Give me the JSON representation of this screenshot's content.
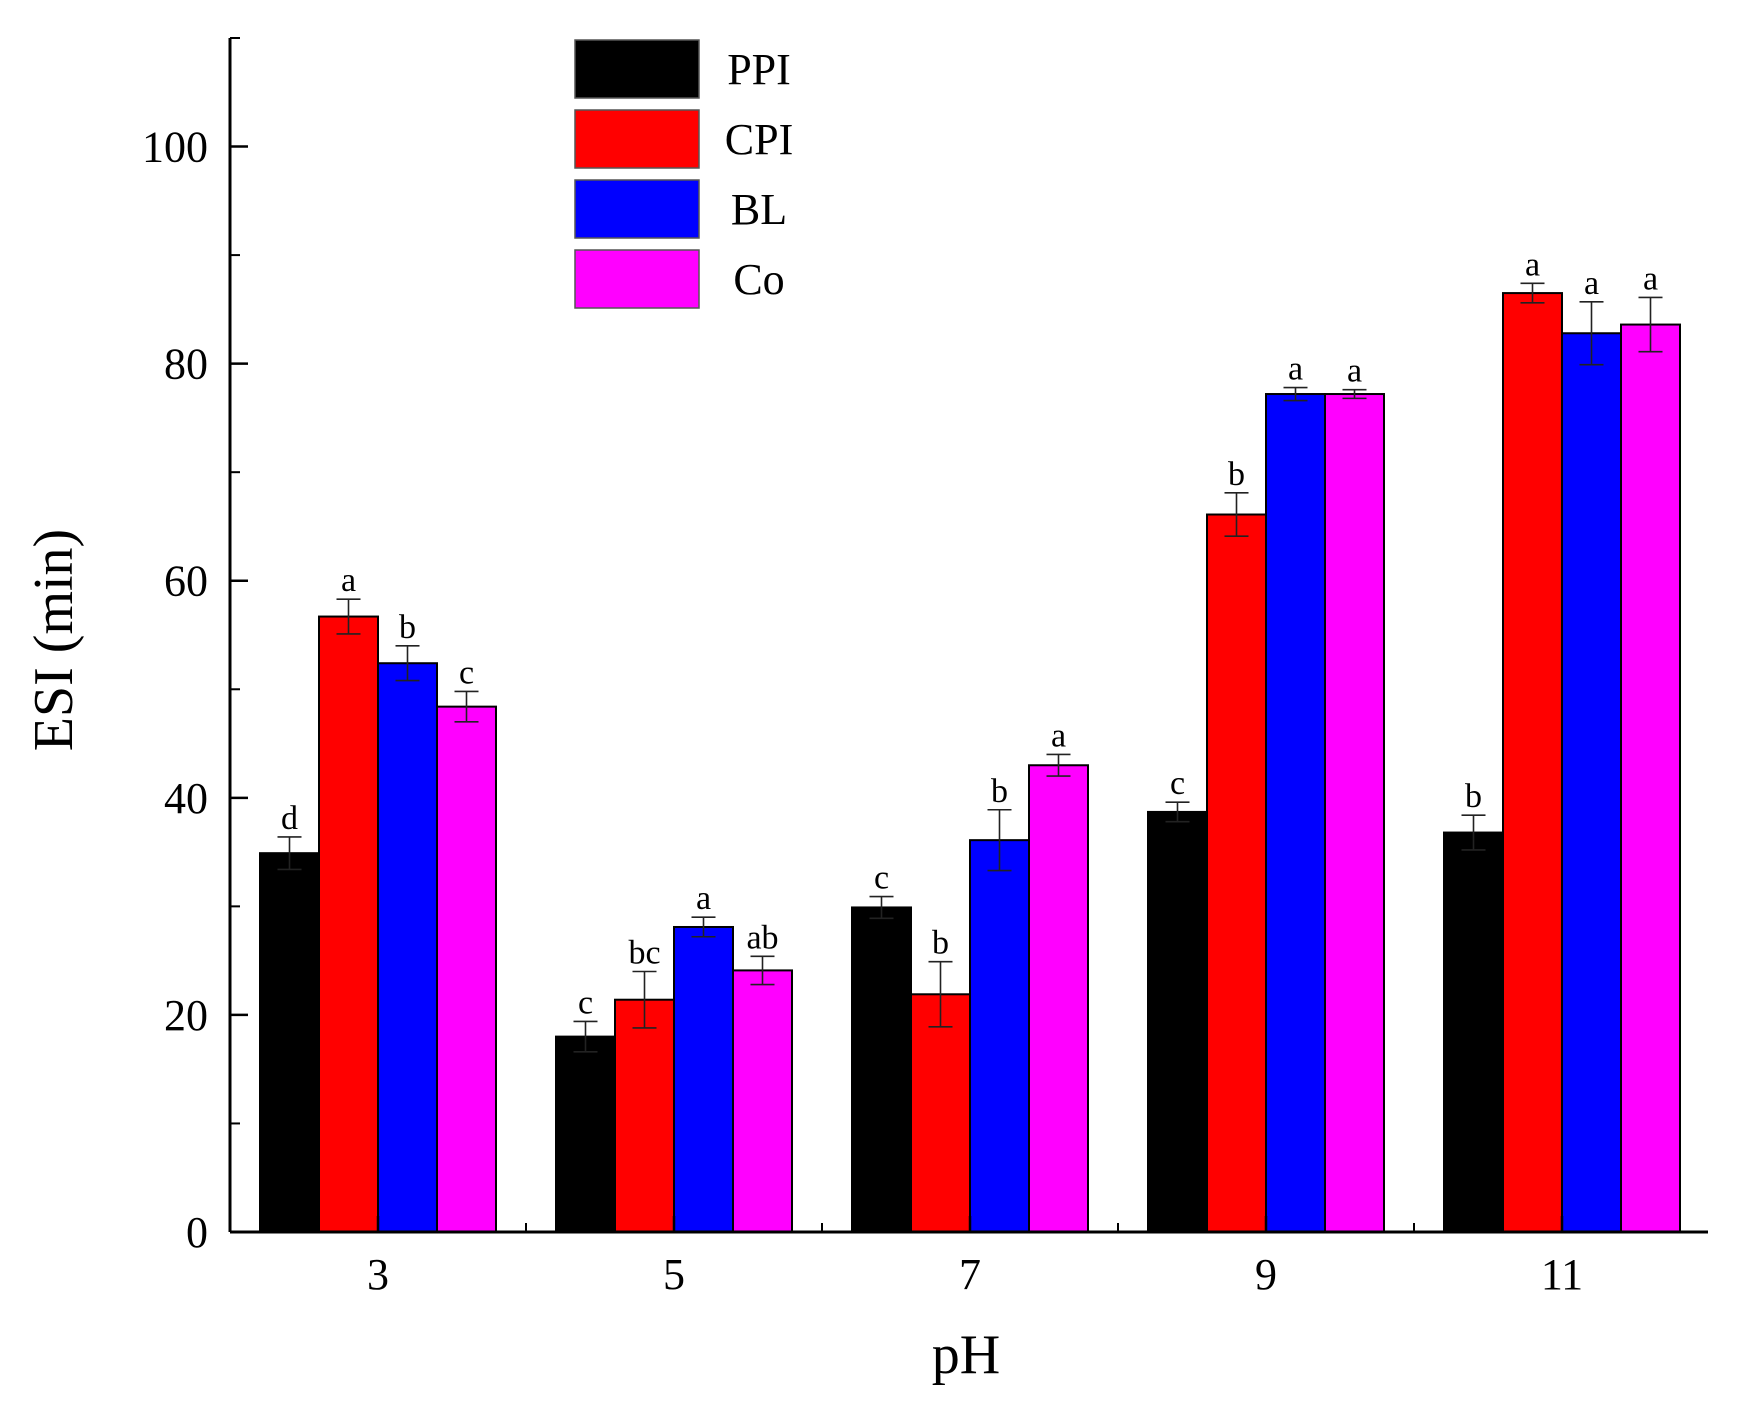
{
  "chart_data": {
    "type": "bar",
    "title": "",
    "xlabel": "pH",
    "ylabel": "ESI (min)",
    "ylim": [
      0,
      110
    ],
    "yticks": [
      0,
      20,
      40,
      60,
      80,
      100
    ],
    "categories": [
      "3",
      "5",
      "7",
      "9",
      "11"
    ],
    "legend_position": "top-left",
    "series": [
      {
        "name": "PPI",
        "color": "#000000",
        "values": [
          34.9,
          18.0,
          29.9,
          38.7,
          36.8
        ],
        "errors": [
          1.5,
          1.4,
          1.0,
          0.9,
          1.6
        ],
        "labels": [
          "d",
          "c",
          "c",
          "c",
          "b"
        ]
      },
      {
        "name": "CPI",
        "color": "#ff0000",
        "values": [
          56.7,
          21.4,
          21.9,
          66.1,
          86.5
        ],
        "errors": [
          1.6,
          2.6,
          3.0,
          2.0,
          0.9
        ],
        "labels": [
          "a",
          "bc",
          "b",
          "b",
          "a"
        ]
      },
      {
        "name": "BL",
        "color": "#0000ff",
        "values": [
          52.4,
          28.1,
          36.1,
          77.2,
          82.8
        ],
        "errors": [
          1.6,
          0.9,
          2.8,
          0.6,
          2.9
        ],
        "labels": [
          "b",
          "a",
          "b",
          "a",
          "a"
        ]
      },
      {
        "name": "Co",
        "color": "#ff00ff",
        "values": [
          48.4,
          24.1,
          43.0,
          77.2,
          83.6
        ],
        "errors": [
          1.4,
          1.3,
          1.0,
          0.4,
          2.5
        ],
        "labels": [
          "c",
          "ab",
          "a",
          "a",
          "a"
        ]
      }
    ]
  }
}
